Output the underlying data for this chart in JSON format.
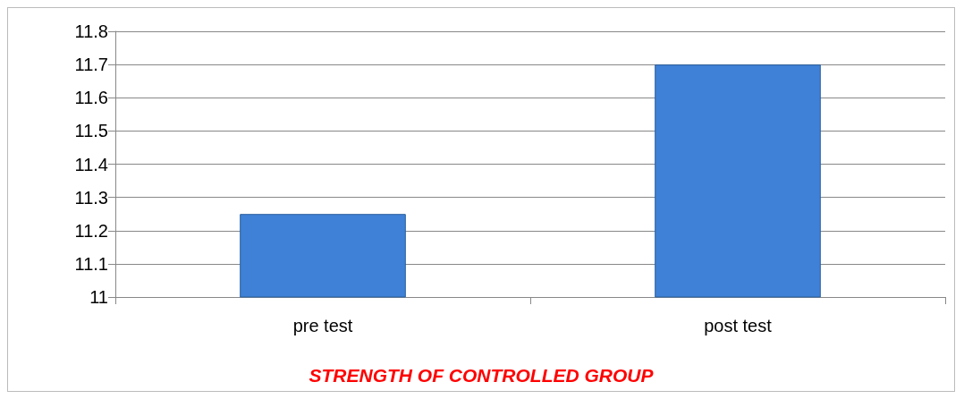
{
  "chart_data": {
    "type": "bar",
    "title": "STRENGTH OF CONTROLLED GROUP",
    "categories": [
      "pre test",
      "post test"
    ],
    "values": [
      11.25,
      11.7
    ],
    "color": "#3f81d6",
    "ylim": [
      11,
      11.8
    ],
    "yticks": [
      11,
      11.1,
      11.2,
      11.3,
      11.4,
      11.5,
      11.6,
      11.7,
      11.8
    ],
    "grid": "y"
  }
}
